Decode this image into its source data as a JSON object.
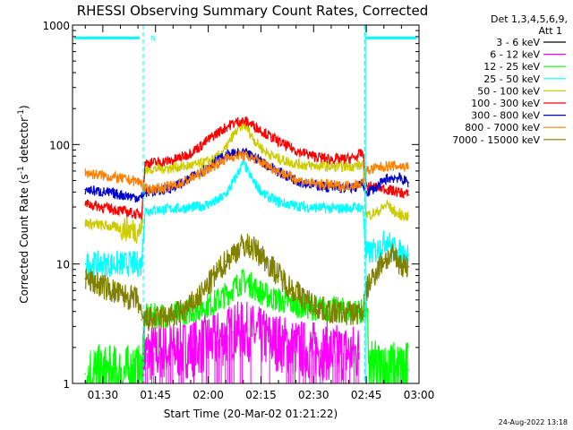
{
  "chart_data": {
    "type": "line",
    "title": "RHESSI Observing Summary Count Rates, Corrected",
    "ylabel": "Corrected Count Rate (s",
    "ylabel_sup": "-1",
    "ylabel_mid": " detector",
    "ylabel_sup2": "-1",
    "ylabel_end": ")",
    "xlabel": "Start Time (20-Mar-02 01:21:22)",
    "yscale": "log",
    "ylim": [
      1,
      1000
    ],
    "xlim": [
      "01:21:22",
      "03:00:00"
    ],
    "x_ticks": [
      "01:30",
      "01:45",
      "02:00",
      "02:15",
      "02:30",
      "02:45",
      "03:00"
    ],
    "x_tick_minutes": [
      90,
      105,
      120,
      135,
      150,
      165,
      180
    ],
    "y_ticks": [
      "1",
      "10",
      "100",
      "1000"
    ],
    "y_tick_values": [
      1,
      10,
      100,
      1000
    ],
    "legend_header": [
      "Det 1,3,4,5,6,9,",
      "Att 1"
    ],
    "legend_position": "top-right, outside plot",
    "night_boundaries_minutes": [
      101.5,
      164.5
    ],
    "night_marker_label": "N",
    "timestamp": "24-Aug-2022 13:18",
    "series": [
      {
        "name": "3 - 6 keV",
        "color": "#000000",
        "x": [],
        "values": []
      },
      {
        "name": "6 - 12 keV",
        "color": "#ff00ff",
        "x": [
          101.5,
          104,
          108,
          112,
          116,
          120,
          124,
          127,
          130,
          133,
          136,
          140,
          144,
          148,
          152,
          156,
          160,
          163
        ],
        "values": [
          1.8,
          1.8,
          1.9,
          1.9,
          2.0,
          2.2,
          2.4,
          2.7,
          2.8,
          2.6,
          2.4,
          2.2,
          2.0,
          1.9,
          1.9,
          1.8,
          1.8,
          1.8
        ]
      },
      {
        "name": "12 - 25 keV",
        "color": "#00ff00",
        "x": [
          85,
          92,
          99,
          101,
          102,
          106,
          110,
          114,
          118,
          122,
          126,
          128,
          130,
          132,
          134,
          138,
          142,
          146,
          150,
          154,
          158,
          162,
          165,
          166,
          170,
          174,
          177
        ],
        "values": [
          1.2,
          1.2,
          1.2,
          1.2,
          3.6,
          3.7,
          3.8,
          4.0,
          4.3,
          4.8,
          5.8,
          6.6,
          7.2,
          6.8,
          6.0,
          5.2,
          4.8,
          4.5,
          4.3,
          4.2,
          4.1,
          4.0,
          4.0,
          1.3,
          1.3,
          1.3,
          1.3
        ]
      },
      {
        "name": "25 - 50 keV",
        "color": "#00ffff",
        "x": [
          85,
          90,
          95,
          100,
          101,
          102,
          106,
          110,
          114,
          118,
          122,
          125,
          127,
          129,
          130,
          131,
          133,
          136,
          140,
          144,
          148,
          152,
          156,
          160,
          164,
          165,
          166,
          168,
          170,
          171,
          172,
          174,
          177
        ],
        "values": [
          10,
          10,
          10,
          10,
          10,
          28,
          28.5,
          29,
          29.5,
          30.5,
          33,
          38,
          48,
          62,
          70,
          62,
          48,
          38,
          33,
          31,
          30,
          29.5,
          29,
          29.5,
          30,
          12,
          12.5,
          13,
          15,
          16.5,
          14,
          12.5,
          12
        ]
      },
      {
        "name": "50 - 100 keV",
        "color": "#cccc00",
        "x": [
          85,
          90,
          95,
          100,
          101,
          102,
          106,
          110,
          114,
          118,
          122,
          125,
          127,
          129,
          130,
          131,
          133,
          136,
          140,
          144,
          148,
          152,
          156,
          160,
          164,
          165,
          166,
          168,
          170,
          171,
          172,
          174,
          177
        ],
        "values": [
          22,
          21,
          20,
          19,
          19,
          62,
          63,
          64,
          66,
          69,
          76,
          92,
          118,
          140,
          148,
          138,
          110,
          88,
          76,
          70,
          67,
          66,
          65,
          66,
          67,
          26,
          26,
          27,
          30,
          32,
          29,
          26,
          25
        ]
      },
      {
        "name": "100 - 300 keV",
        "color": "#ff0000",
        "x": [
          85,
          90,
          95,
          100,
          101,
          102,
          106,
          110,
          114,
          118,
          122,
          126,
          129,
          131,
          134,
          138,
          142,
          146,
          150,
          154,
          158,
          162,
          164,
          165,
          168,
          171,
          174,
          177
        ],
        "values": [
          32,
          30,
          28,
          26,
          26,
          70,
          71,
          74,
          82,
          98,
          122,
          145,
          158,
          155,
          138,
          115,
          98,
          87,
          80,
          76,
          75,
          78,
          86,
          45,
          44,
          42,
          40,
          38
        ]
      },
      {
        "name": "300 - 800 keV",
        "color": "#0000cc",
        "x": [
          85,
          90,
          95,
          100,
          101,
          102,
          106,
          110,
          114,
          118,
          122,
          126,
          129,
          131,
          134,
          138,
          142,
          146,
          150,
          154,
          158,
          162,
          164,
          165,
          168,
          171,
          174,
          177
        ],
        "values": [
          42,
          40,
          38,
          36,
          36,
          40,
          41,
          44,
          50,
          60,
          72,
          82,
          85,
          83,
          76,
          64,
          55,
          49,
          46,
          44,
          43,
          44,
          47,
          40,
          44,
          52,
          53,
          48
        ]
      },
      {
        "name": "800 - 7000 keV",
        "color": "#ff8000",
        "x": [
          85,
          90,
          95,
          100,
          101,
          102,
          106,
          110,
          114,
          118,
          122,
          126,
          129,
          131,
          134,
          138,
          142,
          146,
          150,
          154,
          158,
          162,
          164,
          165,
          168,
          171,
          174,
          177
        ],
        "values": [
          58,
          55,
          52,
          49,
          48,
          42,
          43,
          45,
          50,
          58,
          68,
          78,
          82,
          80,
          74,
          64,
          56,
          50,
          47,
          46,
          45,
          46,
          48,
          60,
          64,
          66,
          66,
          65
        ]
      },
      {
        "name": "7000 - 15000 keV",
        "color": "#808000",
        "x": [
          85,
          90,
          95,
          100,
          101,
          102,
          106,
          110,
          114,
          118,
          122,
          125,
          128,
          130,
          132,
          135,
          138,
          142,
          146,
          150,
          154,
          158,
          162,
          164,
          165,
          167,
          170,
          173,
          175,
          177
        ],
        "values": [
          7.5,
          6.5,
          5.5,
          5.0,
          3.4,
          3.4,
          3.5,
          3.7,
          4.2,
          5.5,
          8.0,
          10.5,
          13,
          14.5,
          14,
          12,
          9.5,
          7.0,
          5.5,
          4.5,
          4.0,
          3.9,
          3.9,
          4.0,
          6.0,
          8.0,
          11,
          11.5,
          10,
          9.5
        ]
      }
    ]
  }
}
